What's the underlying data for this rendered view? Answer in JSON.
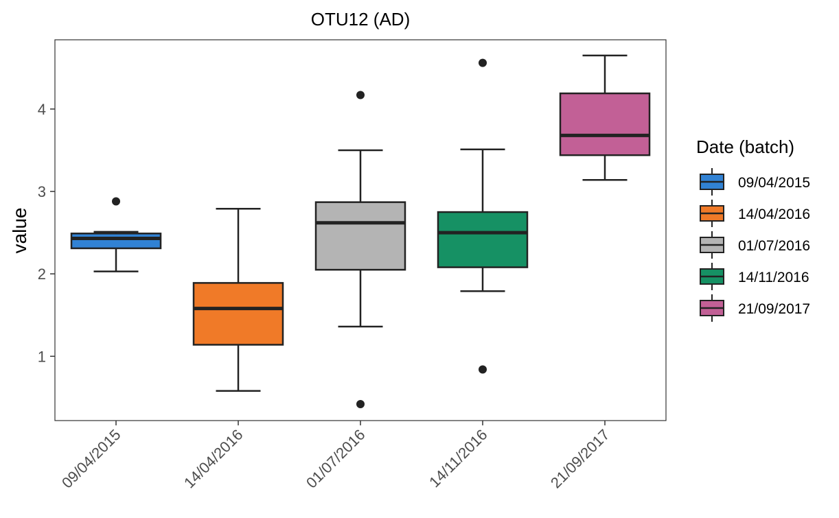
{
  "chart_data": {
    "type": "box",
    "title": "OTU12 (AD)",
    "xlabel": "",
    "ylabel": "value",
    "ylim": [
      0.22,
      4.84
    ],
    "yticks": [
      1,
      2,
      3,
      4
    ],
    "categories": [
      "09/04/2015",
      "14/04/2016",
      "01/07/2016",
      "14/11/2016",
      "21/09/2017"
    ],
    "grid": false,
    "legend": {
      "title": "Date (batch)",
      "position": "right",
      "entries": [
        "09/04/2015",
        "14/04/2016",
        "01/07/2016",
        "14/11/2016",
        "21/09/2017"
      ]
    },
    "series": [
      {
        "category": "09/04/2015",
        "color": "#3182d4",
        "whisker_low": 2.03,
        "q1": 2.31,
        "median": 2.43,
        "q3": 2.49,
        "whisker_high": 2.51,
        "outliers": [
          2.88
        ]
      },
      {
        "category": "14/04/2016",
        "color": "#f07a28",
        "whisker_low": 0.58,
        "q1": 1.14,
        "median": 1.58,
        "q3": 1.89,
        "whisker_high": 2.79,
        "outliers": []
      },
      {
        "category": "01/07/2016",
        "color": "#b4b4b4",
        "whisker_low": 1.36,
        "q1": 2.05,
        "median": 2.62,
        "q3": 2.87,
        "whisker_high": 3.5,
        "outliers": [
          4.17,
          0.42
        ]
      },
      {
        "category": "14/11/2016",
        "color": "#169164",
        "whisker_low": 1.79,
        "q1": 2.08,
        "median": 2.5,
        "q3": 2.75,
        "whisker_high": 3.51,
        "outliers": [
          4.56,
          0.84
        ]
      },
      {
        "category": "21/09/2017",
        "color": "#c26096",
        "whisker_low": 3.14,
        "q1": 3.44,
        "median": 3.68,
        "q3": 4.19,
        "whisker_high": 4.65,
        "outliers": []
      }
    ]
  }
}
